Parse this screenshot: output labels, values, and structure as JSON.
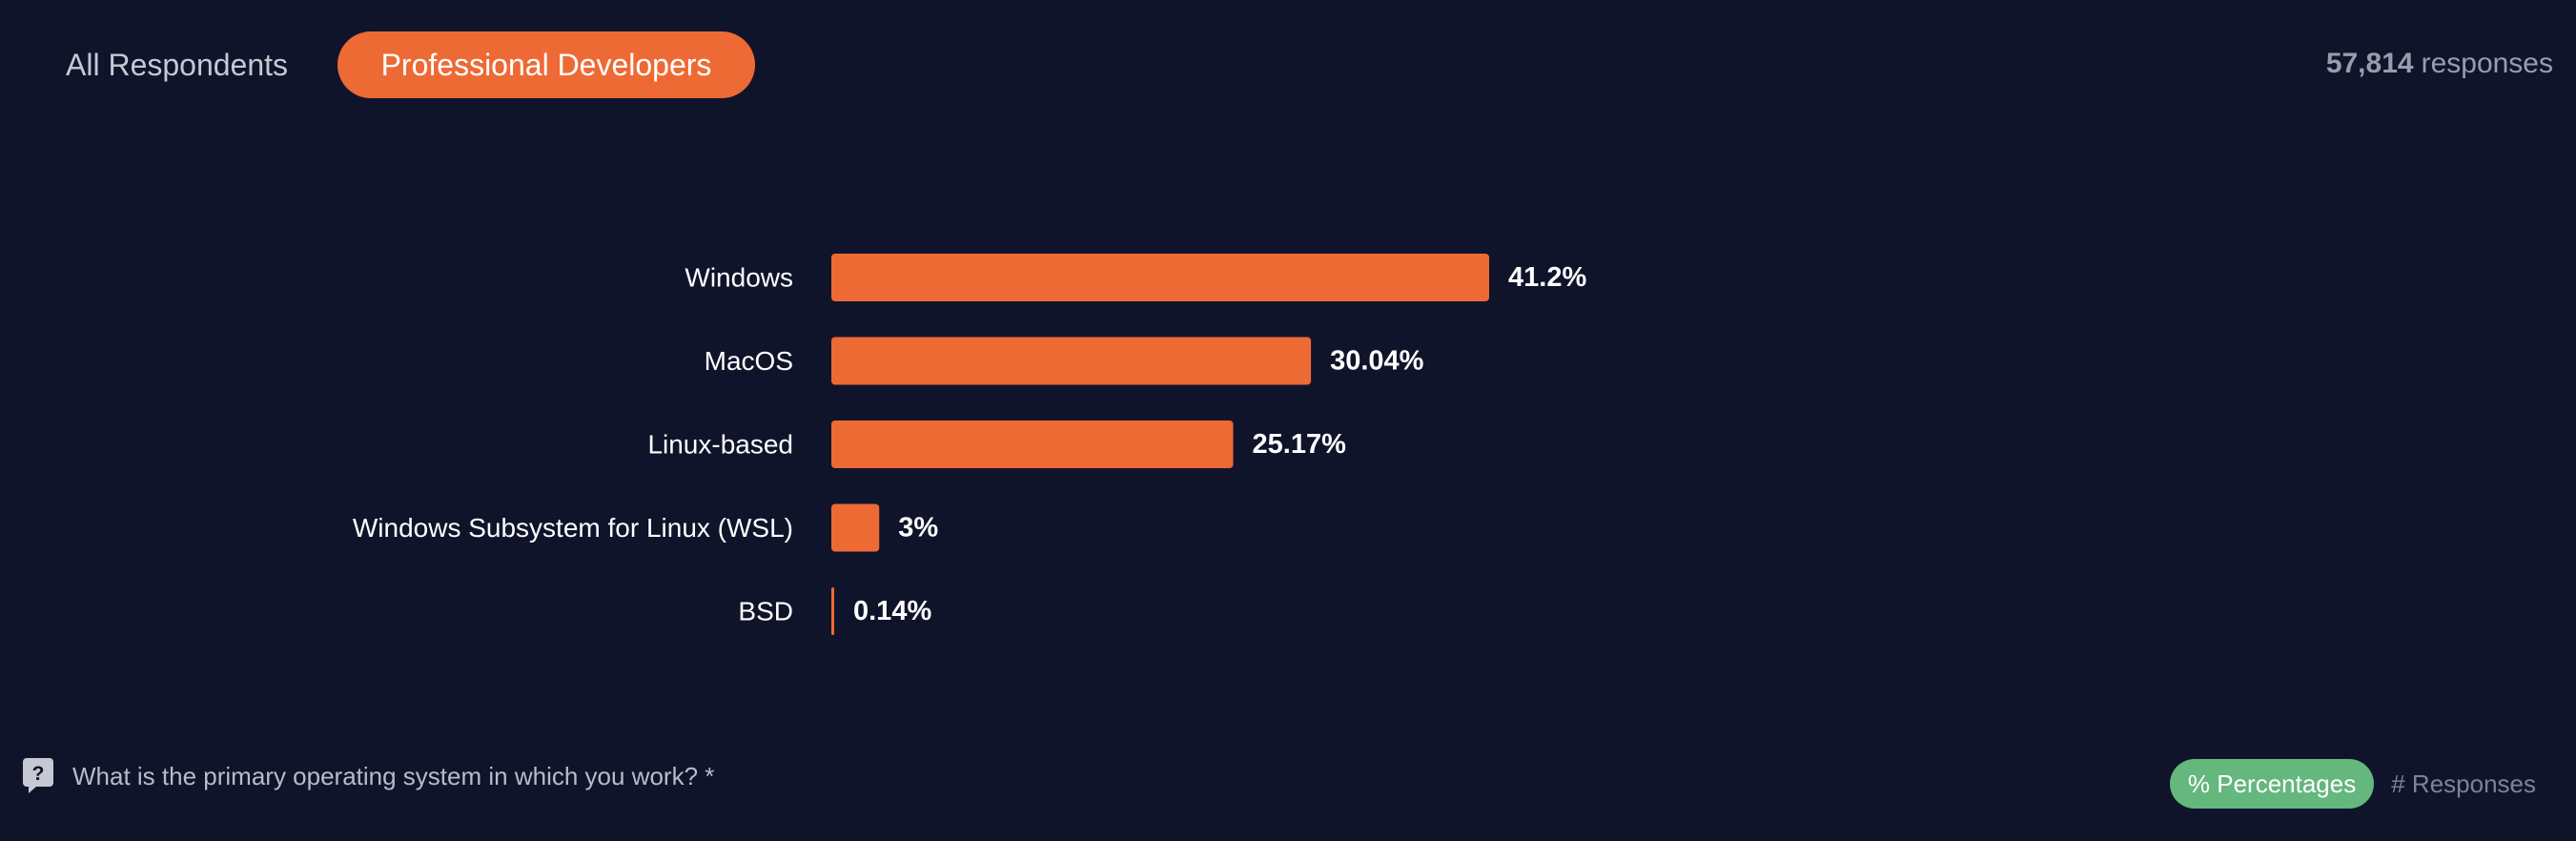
{
  "tabs": {
    "all_label": "All Respondents",
    "pro_label": "Professional Developers"
  },
  "responses": {
    "count": "57,814",
    "suffix": "responses"
  },
  "question": {
    "text": "What is the primary operating system in which you work? *"
  },
  "toggles": {
    "percent_label": "% Percentages",
    "responses_label": "# Responses"
  },
  "colors": {
    "background": "#10142a",
    "bar": "#ee6a35",
    "active_tab": "#ee6a35",
    "active_toggle": "#64b77d"
  },
  "icons": {
    "question": "help-icon"
  },
  "chart_data": {
    "type": "bar",
    "orientation": "horizontal",
    "categories": [
      "Windows",
      "MacOS",
      "Linux-based",
      "Windows Subsystem for Linux (WSL)",
      "BSD"
    ],
    "values": [
      41.2,
      30.04,
      25.17,
      3,
      0.14
    ],
    "value_labels": [
      "41.2%",
      "30.04%",
      "25.17%",
      "3%",
      "0.14%"
    ],
    "unit": "%",
    "grid": false
  }
}
